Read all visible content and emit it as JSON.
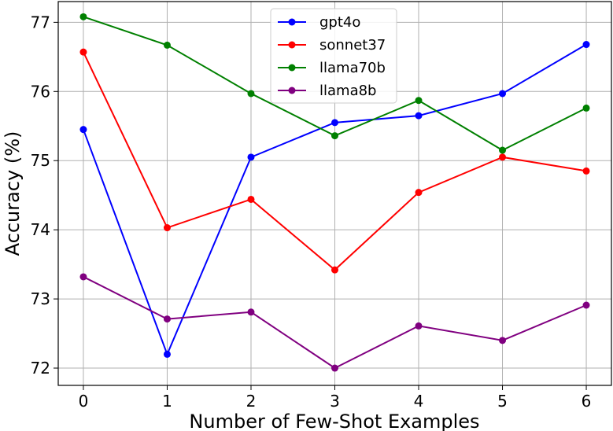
{
  "chart_data": {
    "type": "line",
    "title": "",
    "xlabel": "Number of Few-Shot Examples",
    "ylabel": "Accuracy (%)",
    "x": [
      0,
      1,
      2,
      3,
      4,
      5,
      6
    ],
    "x_tick_labels": [
      "0",
      "1",
      "2",
      "3",
      "4",
      "5",
      "6"
    ],
    "y_ticks": [
      72,
      73,
      74,
      75,
      76,
      77
    ],
    "y_tick_labels": [
      "72",
      "73",
      "74",
      "75",
      "76",
      "77"
    ],
    "xlim": [
      -0.3,
      6.3
    ],
    "ylim": [
      71.75,
      77.3
    ],
    "grid": true,
    "legend_position": "top-center",
    "series": [
      {
        "name": "gpt4o",
        "color": "#0000ff",
        "values": [
          75.45,
          72.2,
          75.05,
          75.55,
          75.65,
          75.97,
          76.68
        ]
      },
      {
        "name": "sonnet37",
        "color": "#ff0000",
        "values": [
          76.57,
          74.03,
          74.44,
          73.42,
          74.54,
          75.05,
          74.85
        ]
      },
      {
        "name": "llama70b",
        "color": "#008000",
        "values": [
          77.08,
          76.67,
          75.97,
          75.36,
          75.87,
          75.15,
          75.76
        ]
      },
      {
        "name": "llama8b",
        "color": "#800080",
        "values": [
          73.32,
          72.71,
          72.81,
          72.0,
          72.61,
          72.4,
          72.91
        ]
      }
    ]
  }
}
